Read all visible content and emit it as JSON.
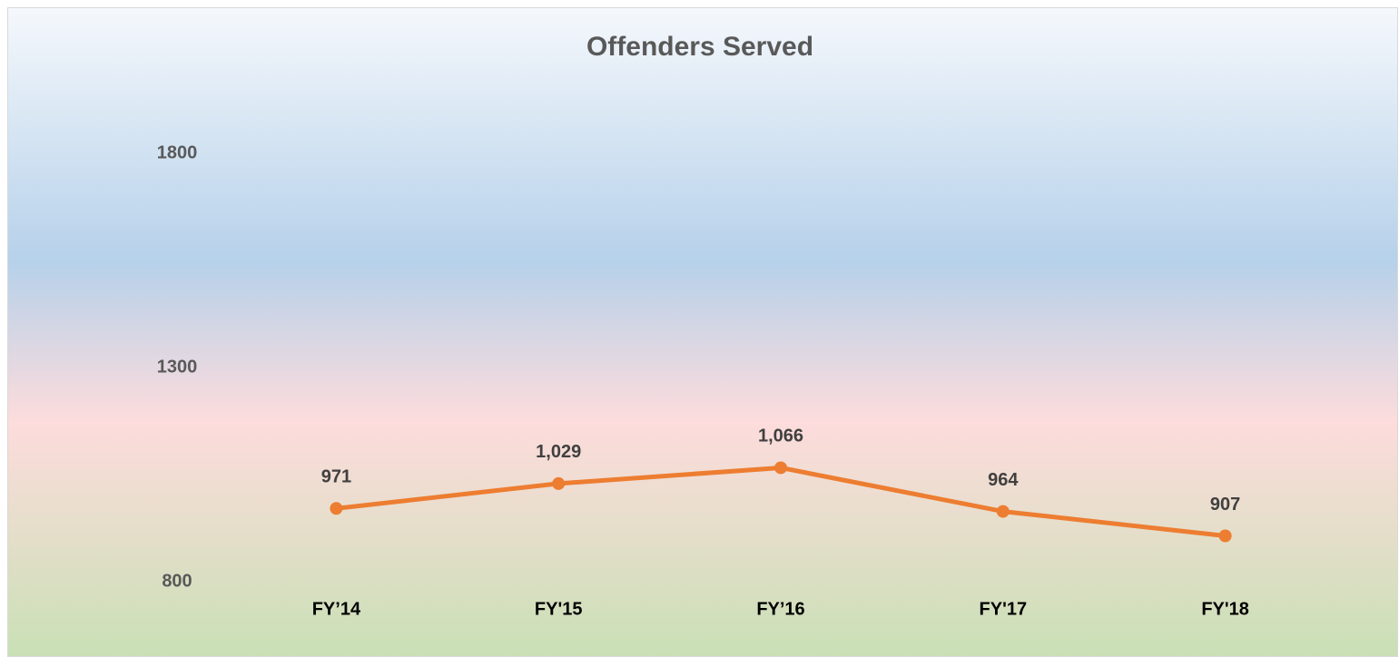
{
  "chart_data": {
    "type": "line",
    "title": "Offenders Served",
    "categories": [
      "FY’14",
      "FY'15",
      "FY’16",
      "FY'17",
      "FY'18"
    ],
    "series": [
      {
        "name": "Offenders Served",
        "color": "#ed7d31",
        "values": [
          971,
          1029,
          1066,
          964,
          907
        ],
        "value_labels": [
          "971",
          "1,029",
          "1,066",
          "964",
          "907"
        ]
      }
    ],
    "ylim": [
      800,
      1800
    ],
    "yticks": [
      800,
      1300,
      1800
    ],
    "grid": false,
    "legend": false
  }
}
